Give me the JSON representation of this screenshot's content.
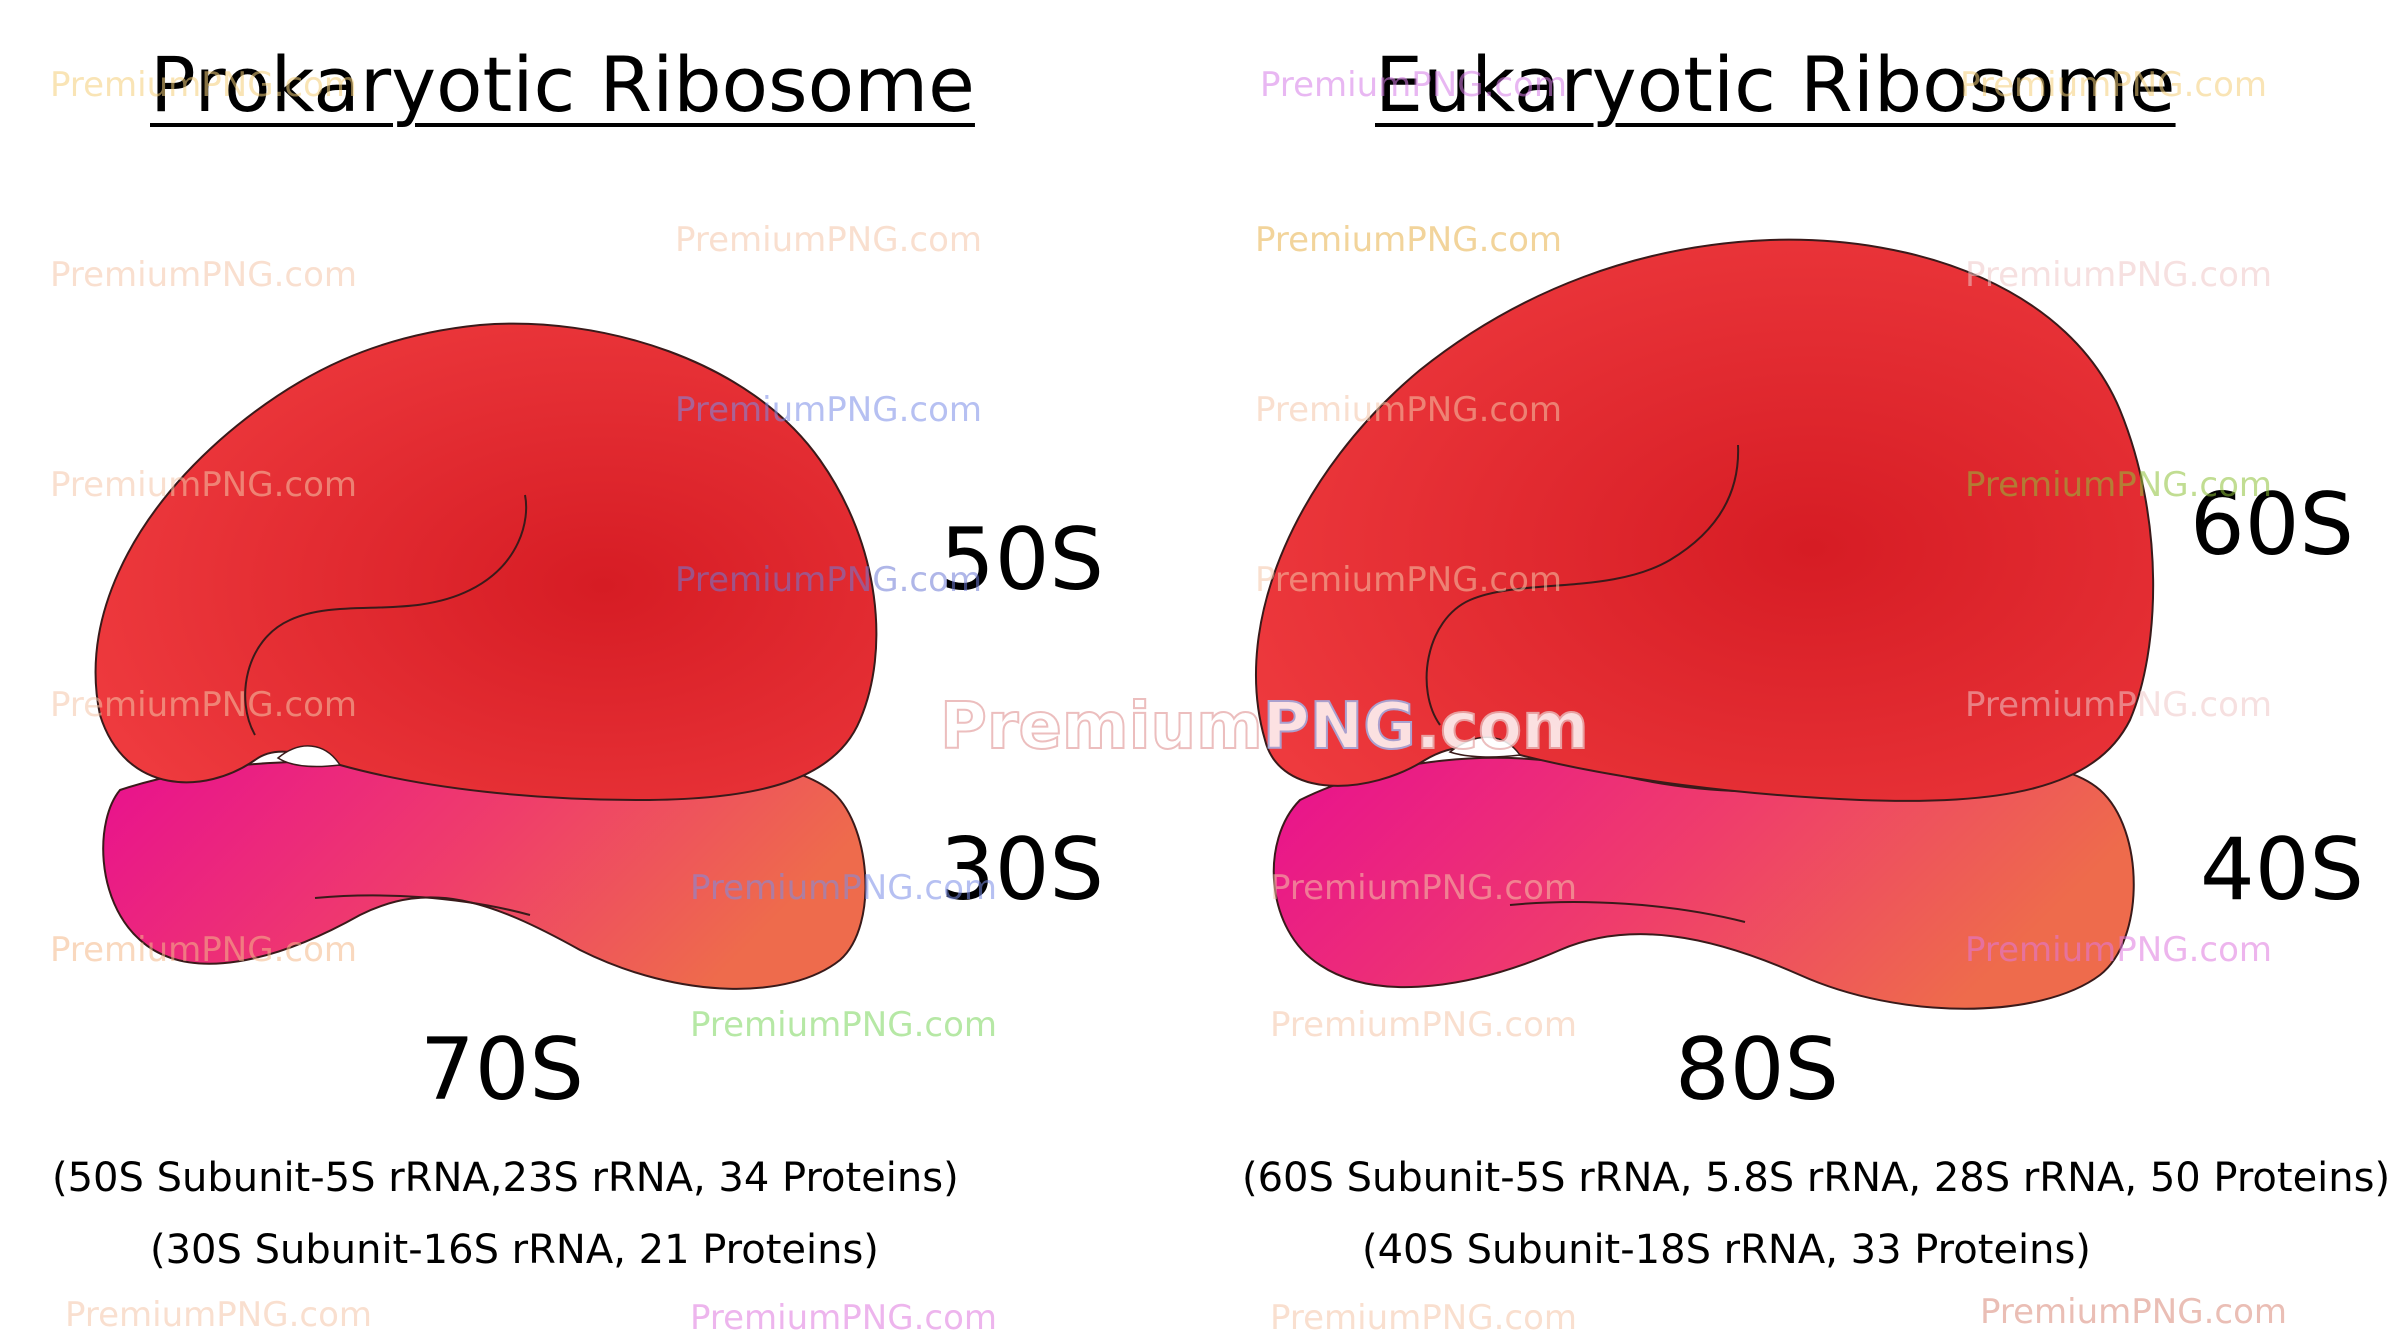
{
  "prokaryotic": {
    "title": "Prokaryotic Ribosome",
    "large_subunit": "50S",
    "small_subunit": "30S",
    "total": "70S",
    "note_line1": "(50S Subunit-5S rRNA,23S rRNA, 34 Proteins)",
    "note_line2": "(30S Subunit-16S rRNA, 21 Proteins)"
  },
  "eukaryotic": {
    "title": "Eukaryotic Ribosome",
    "large_subunit": "60S",
    "small_subunit": "40S",
    "total": "80S",
    "note_line1": "(60S Subunit-5S rRNA, 5.8S rRNA, 28S rRNA, 50 Proteins)",
    "note_line2": "(40S Subunit-18S rRNA, 33 Proteins)"
  },
  "watermark": {
    "text": "PremiumPNG.com",
    "center_left": "Premium",
    "center_mid": "PNG",
    "center_right": ".com"
  },
  "colors": {
    "large_subunit": "#dd2129",
    "small_subunit_start": "#e8128f",
    "small_subunit_end": "#ef6a4e",
    "outline": "#3a1a1a"
  }
}
